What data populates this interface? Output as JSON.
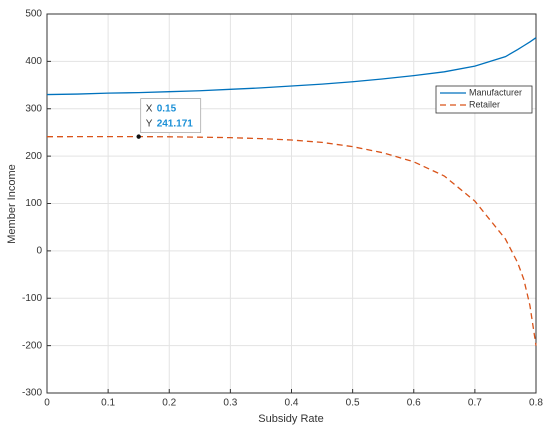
{
  "chart_data": {
    "type": "line",
    "x_label": "Subsidy Rate",
    "y_label": "Member Income",
    "x": [
      0,
      0.05,
      0.1,
      0.15,
      0.2,
      0.25,
      0.3,
      0.35,
      0.4,
      0.45,
      0.5,
      0.55,
      0.6,
      0.65,
      0.7,
      0.75,
      0.77,
      0.78,
      0.79,
      0.8
    ],
    "series": [
      {
        "name": "Manufacturer",
        "color": "#0072bd",
        "style": "solid",
        "values": [
          330,
          331,
          333,
          334,
          336,
          338,
          341,
          344,
          348,
          352,
          357,
          363,
          370,
          378,
          390,
          410,
          425,
          433,
          441,
          450
        ]
      },
      {
        "name": "Retailer",
        "color": "#d95319",
        "style": "dashed",
        "values": [
          241,
          241.1,
          241.15,
          241.171,
          240.8,
          240,
          239,
          237,
          234,
          229,
          220,
          207,
          188,
          158,
          105,
          25,
          -25,
          -60,
          -115,
          -200
        ]
      }
    ],
    "xlim": [
      0,
      0.8
    ],
    "xticks": [
      0,
      0.1,
      0.2,
      0.3,
      0.4,
      0.5,
      0.6,
      0.7,
      0.8
    ],
    "ylim": [
      -300,
      500
    ],
    "yticks": [
      -300,
      -200,
      -100,
      0,
      100,
      200,
      300,
      400,
      500
    ],
    "grid": true,
    "legend_position": "upper-right",
    "datatip": {
      "x_label": "X",
      "x": 0.15,
      "y_label": "Y",
      "y": 241.171
    }
  }
}
